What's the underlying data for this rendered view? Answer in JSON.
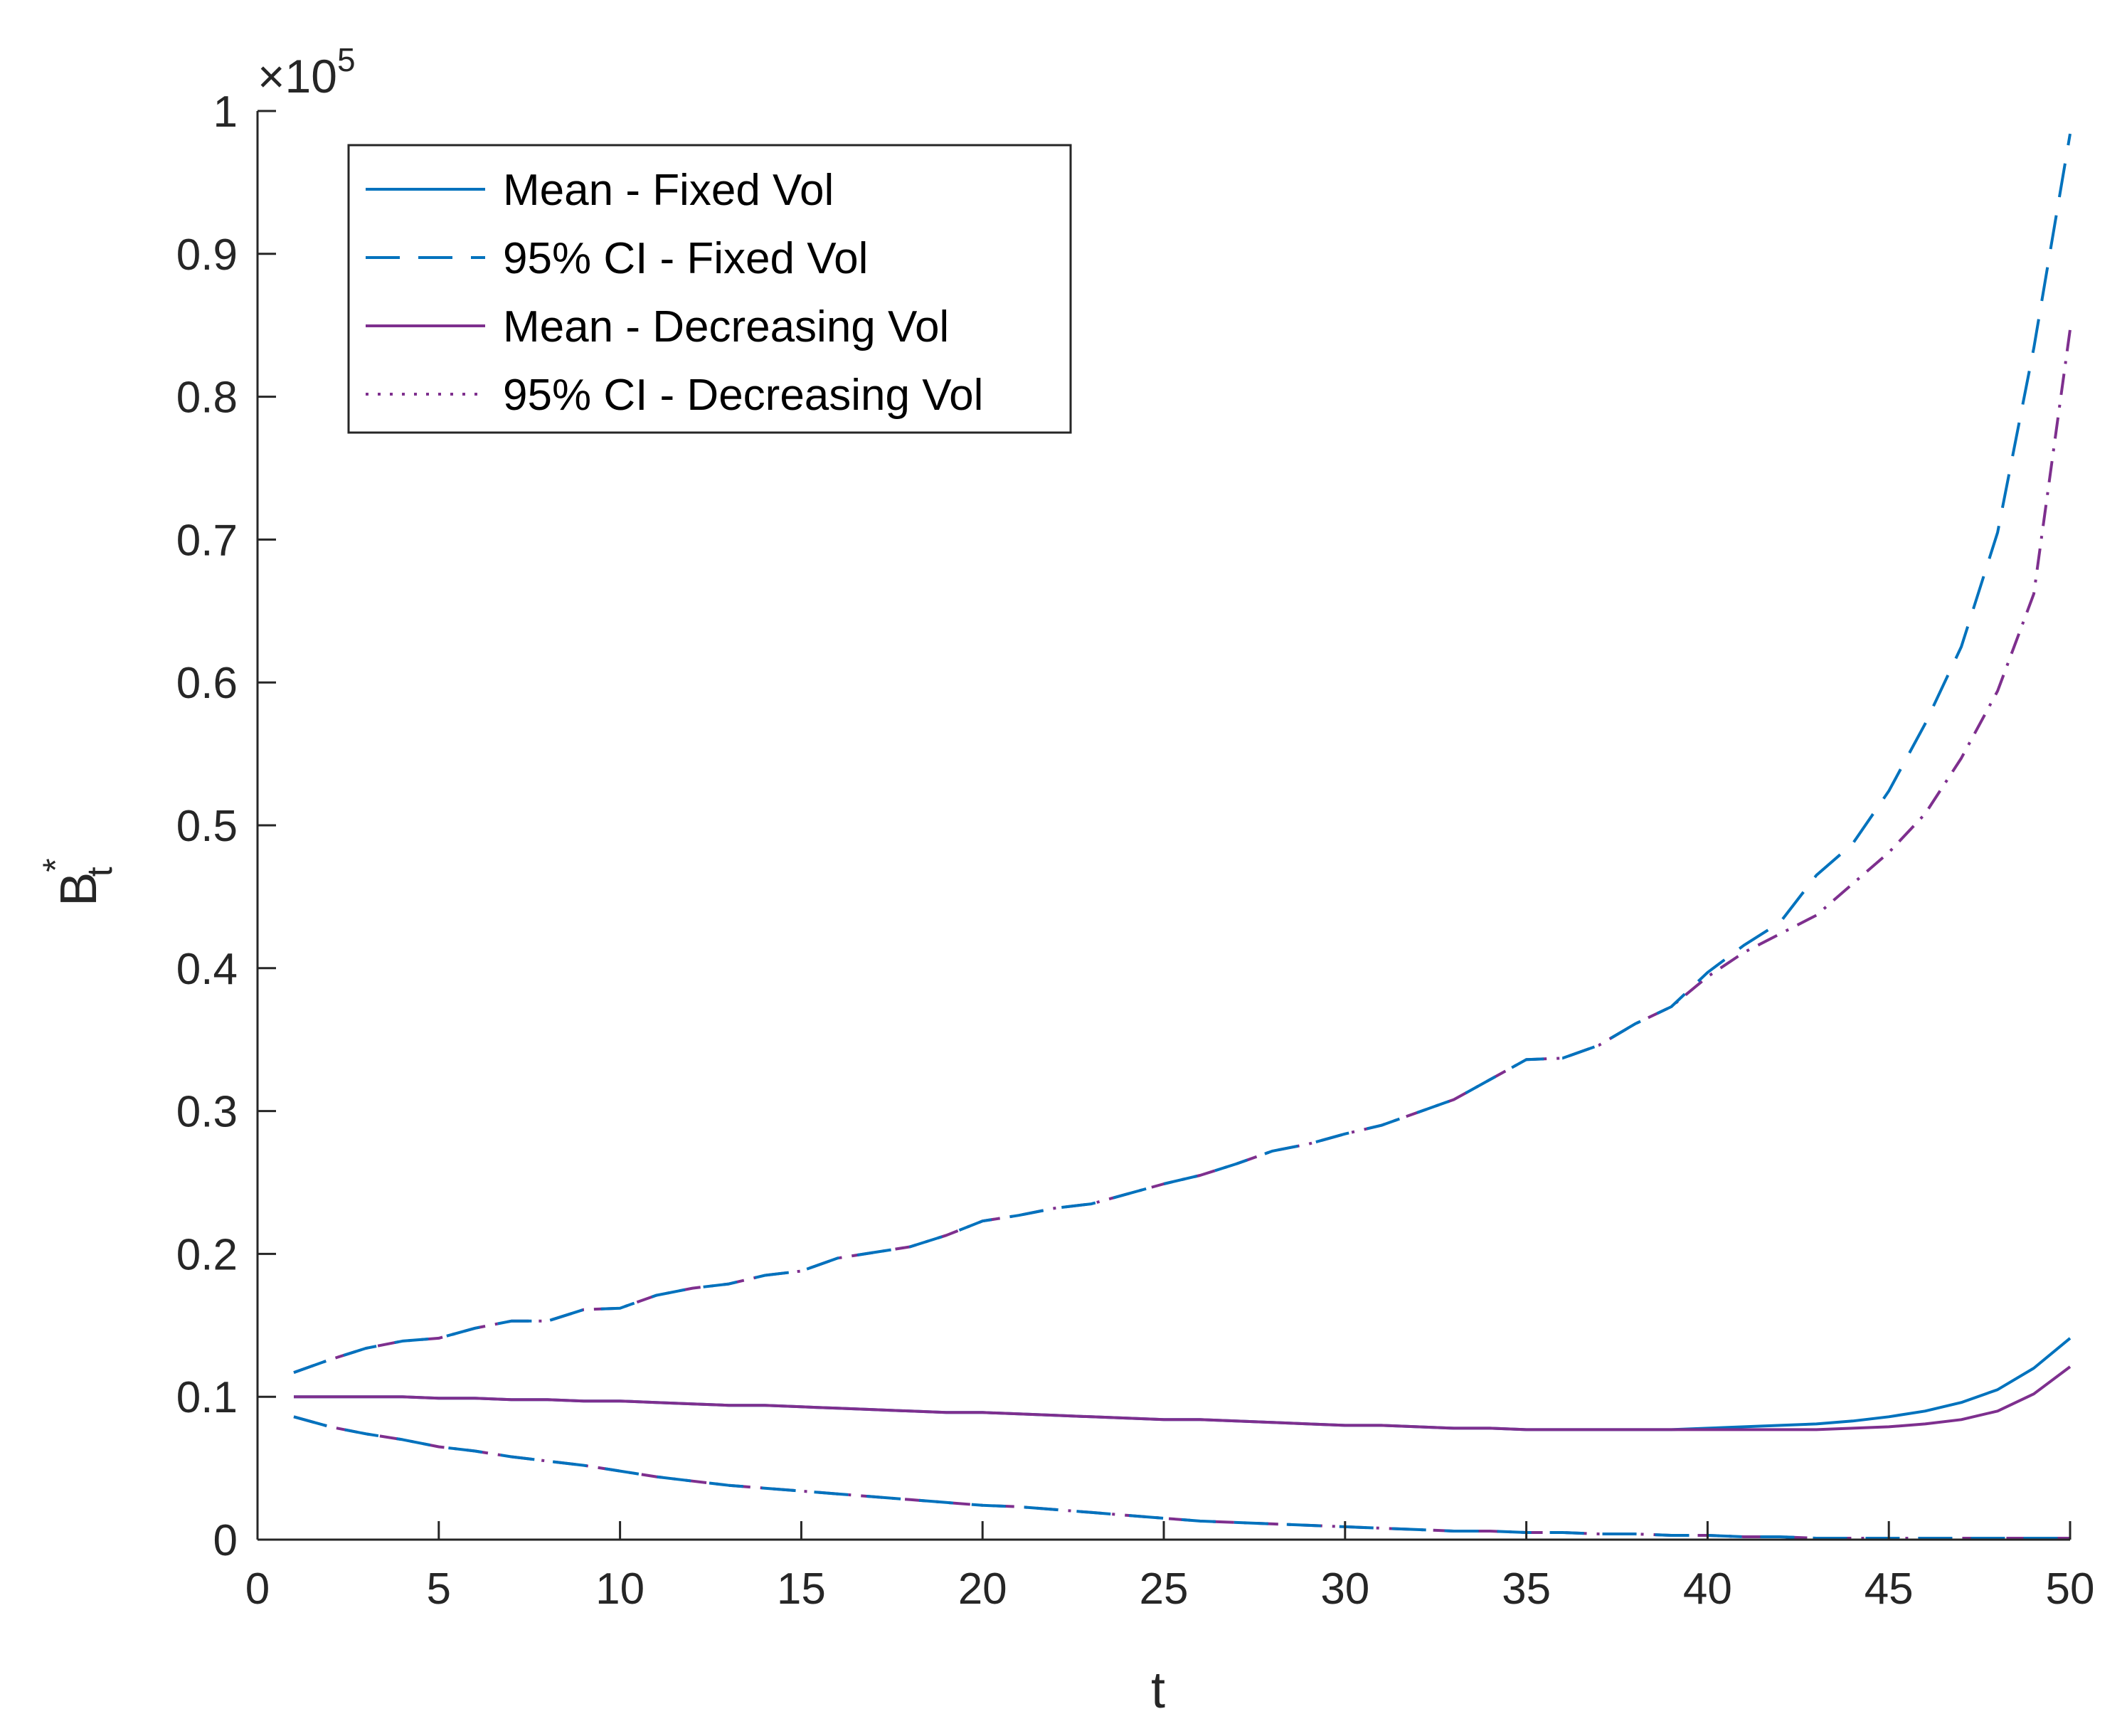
{
  "chart_data": {
    "type": "line",
    "title": "",
    "xlabel": "t",
    "ylabel": "B",
    "ylabel_superscript": "*",
    "ylabel_subscript": "t",
    "xlim": [
      0,
      50
    ],
    "ylim": [
      0,
      1
    ],
    "y_exponent_prefix": "×10",
    "y_exponent_power": "5",
    "xticks": [
      0,
      5,
      10,
      15,
      20,
      25,
      30,
      35,
      40,
      45,
      50
    ],
    "xtick_labels": [
      "0",
      "5",
      "10",
      "15",
      "20",
      "25",
      "30",
      "35",
      "40",
      "45",
      "50"
    ],
    "yticks": [
      0,
      0.1,
      0.2,
      0.3,
      0.4,
      0.5,
      0.6,
      0.7,
      0.8,
      0.9,
      1
    ],
    "ytick_labels": [
      "0",
      "0.1",
      "0.2",
      "0.3",
      "0.4",
      "0.5",
      "0.6",
      "0.7",
      "0.8",
      "0.9",
      "1"
    ],
    "grid": false,
    "legend_position": "top-left",
    "x": [
      1,
      2,
      3,
      4,
      5,
      6,
      7,
      8,
      9,
      10,
      11,
      12,
      13,
      14,
      15,
      16,
      17,
      18,
      19,
      20,
      21,
      22,
      23,
      24,
      25,
      26,
      27,
      28,
      29,
      30,
      31,
      32,
      33,
      34,
      35,
      36,
      37,
      38,
      39,
      40,
      41,
      42,
      43,
      44,
      45,
      46,
      47,
      48,
      49,
      50
    ],
    "series": [
      {
        "name": "95% CI - Decreasing Vol (upper)",
        "legend": false,
        "color": "#7E2F8E",
        "style": "dashdot",
        "values": [
          0.117,
          0.126,
          0.134,
          0.139,
          0.141,
          0.148,
          0.153,
          0.153,
          0.161,
          0.162,
          0.171,
          0.176,
          0.179,
          0.185,
          0.188,
          0.197,
          0.201,
          0.205,
          0.213,
          0.223,
          0.227,
          0.232,
          0.235,
          0.242,
          0.249,
          0.255,
          0.263,
          0.272,
          0.277,
          0.284,
          0.29,
          0.299,
          0.308,
          0.322,
          0.336,
          0.337,
          0.346,
          0.361,
          0.373,
          0.394,
          0.411,
          0.424,
          0.437,
          0.459,
          0.481,
          0.508,
          0.547,
          0.594,
          0.662,
          0.847
        ]
      },
      {
        "name": "95% CI - Decreasing Vol (lower)",
        "legend": false,
        "color": "#7E2F8E",
        "style": "dashdot",
        "values": [
          0.086,
          0.079,
          0.074,
          0.07,
          0.065,
          0.062,
          0.058,
          0.055,
          0.052,
          0.048,
          0.044,
          0.041,
          0.038,
          0.036,
          0.034,
          0.032,
          0.03,
          0.028,
          0.026,
          0.024,
          0.023,
          0.021,
          0.019,
          0.017,
          0.015,
          0.013,
          0.012,
          0.011,
          0.01,
          0.009,
          0.008,
          0.007,
          0.006,
          0.006,
          0.005,
          0.005,
          0.004,
          0.004,
          0.003,
          0.003,
          0.002,
          0.002,
          0.001,
          0.001,
          0.001,
          0.001,
          0.001,
          0.001,
          0.001,
          0.001
        ]
      },
      {
        "name": "95% CI - Fixed Vol (upper)",
        "legend": false,
        "color": "#0072BD",
        "style": "longdash",
        "values": [
          0.117,
          0.126,
          0.134,
          0.139,
          0.141,
          0.148,
          0.153,
          0.153,
          0.161,
          0.162,
          0.171,
          0.176,
          0.179,
          0.185,
          0.188,
          0.197,
          0.201,
          0.205,
          0.213,
          0.223,
          0.227,
          0.232,
          0.235,
          0.242,
          0.249,
          0.255,
          0.263,
          0.272,
          0.277,
          0.284,
          0.29,
          0.299,
          0.308,
          0.322,
          0.336,
          0.337,
          0.346,
          0.361,
          0.373,
          0.397,
          0.416,
          0.432,
          0.465,
          0.487,
          0.524,
          0.571,
          0.625,
          0.705,
          0.834,
          0.984
        ]
      },
      {
        "name": "95% CI - Fixed Vol (lower)",
        "legend": false,
        "color": "#0072BD",
        "style": "longdash",
        "values": [
          0.086,
          0.079,
          0.074,
          0.07,
          0.065,
          0.062,
          0.058,
          0.055,
          0.052,
          0.048,
          0.044,
          0.041,
          0.038,
          0.036,
          0.034,
          0.032,
          0.03,
          0.028,
          0.026,
          0.024,
          0.023,
          0.021,
          0.019,
          0.017,
          0.015,
          0.013,
          0.012,
          0.011,
          0.01,
          0.009,
          0.008,
          0.007,
          0.006,
          0.006,
          0.005,
          0.005,
          0.004,
          0.004,
          0.003,
          0.003,
          0.002,
          0.002,
          0.001,
          0.001,
          0.001,
          0.001,
          0.001,
          0.001,
          0.001,
          0.001
        ]
      },
      {
        "name": "Mean - Fixed Vol",
        "legend": true,
        "color": "#0072BD",
        "style": "solid",
        "values": [
          0.1,
          0.1,
          0.1,
          0.1,
          0.099,
          0.099,
          0.098,
          0.098,
          0.097,
          0.097,
          0.096,
          0.095,
          0.094,
          0.094,
          0.093,
          0.092,
          0.091,
          0.09,
          0.089,
          0.089,
          0.088,
          0.087,
          0.086,
          0.085,
          0.084,
          0.084,
          0.083,
          0.082,
          0.081,
          0.08,
          0.08,
          0.079,
          0.078,
          0.078,
          0.077,
          0.077,
          0.077,
          0.077,
          0.077,
          0.078,
          0.079,
          0.08,
          0.081,
          0.083,
          0.086,
          0.09,
          0.096,
          0.105,
          0.12,
          0.141
        ]
      },
      {
        "name": "Mean - Decreasing Vol",
        "legend": true,
        "color": "#7E2F8E",
        "style": "solid",
        "values": [
          0.1,
          0.1,
          0.1,
          0.1,
          0.099,
          0.099,
          0.098,
          0.098,
          0.097,
          0.097,
          0.096,
          0.095,
          0.094,
          0.094,
          0.093,
          0.092,
          0.091,
          0.09,
          0.089,
          0.089,
          0.088,
          0.087,
          0.086,
          0.085,
          0.084,
          0.084,
          0.083,
          0.082,
          0.081,
          0.08,
          0.08,
          0.079,
          0.078,
          0.078,
          0.077,
          0.077,
          0.077,
          0.077,
          0.077,
          0.077,
          0.077,
          0.077,
          0.077,
          0.078,
          0.079,
          0.081,
          0.084,
          0.09,
          0.102,
          0.121
        ]
      }
    ],
    "legend": [
      {
        "label": "Mean - Fixed Vol",
        "color": "#0072BD",
        "style": "solid"
      },
      {
        "label": "95% CI - Fixed Vol",
        "color": "#0072BD",
        "style": "longdash"
      },
      {
        "label": "Mean - Decreasing Vol",
        "color": "#7E2F8E",
        "style": "solid"
      },
      {
        "label": "95% CI - Decreasing Vol",
        "color": "#7E2F8E",
        "style": "dotted"
      }
    ]
  }
}
